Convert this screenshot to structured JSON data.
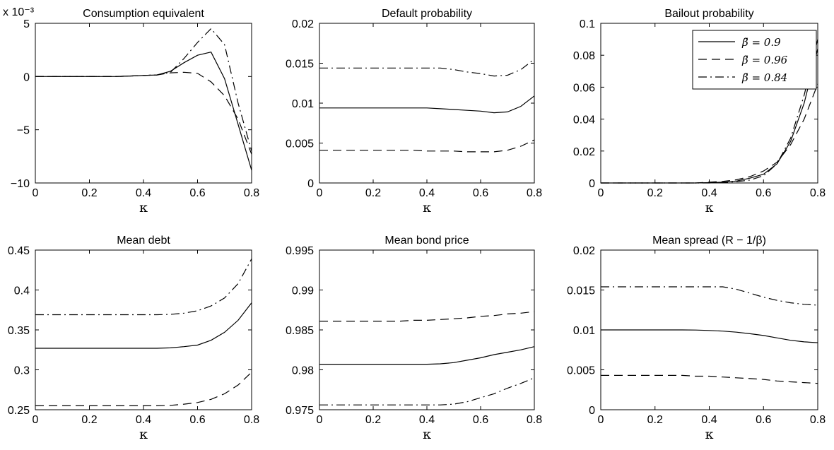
{
  "chart_data": [
    {
      "type": "line",
      "title": "Consumption equivalent",
      "xlabel": "κ",
      "multiplier_label": "x 10⁻³",
      "xlim": [
        0,
        0.8
      ],
      "ylim": [
        -10,
        5
      ],
      "xticks": [
        "0",
        "0.2",
        "0.4",
        "0.6",
        "0.8"
      ],
      "yticks": [
        "−10",
        "−5",
        "0",
        "5"
      ],
      "ytick_values": [
        -10,
        -5,
        0,
        5
      ],
      "grid": false,
      "x": [
        0,
        0.05,
        0.1,
        0.15,
        0.2,
        0.25,
        0.3,
        0.35,
        0.4,
        0.45,
        0.5,
        0.55,
        0.6,
        0.65,
        0.7,
        0.75,
        0.8
      ],
      "series": [
        {
          "name": "β̃ = 0.9",
          "dash": "solid",
          "values": [
            0,
            0,
            0,
            0,
            0,
            0,
            0,
            0.05,
            0.1,
            0.15,
            0.5,
            1.3,
            2.0,
            2.3,
            -0.2,
            -4.5,
            -8.8
          ]
        },
        {
          "name": "β̃ = 0.96",
          "dash": "dash",
          "values": [
            0,
            0,
            0,
            0,
            0,
            0,
            0,
            0.05,
            0.1,
            0.15,
            0.35,
            0.4,
            0.3,
            -0.5,
            -1.8,
            -4.0,
            -7.3
          ]
        },
        {
          "name": "β̃ = 0.84",
          "dash": "dashdot",
          "values": [
            0,
            0,
            0,
            0,
            0,
            0,
            0,
            0.05,
            0.1,
            0.15,
            0.4,
            1.7,
            3.2,
            4.5,
            3.0,
            -2.5,
            -7.0
          ]
        }
      ]
    },
    {
      "type": "line",
      "title": "Default probability",
      "xlabel": "κ",
      "xlim": [
        0,
        0.8
      ],
      "ylim": [
        0,
        0.02
      ],
      "xticks": [
        "0",
        "0.2",
        "0.4",
        "0.6",
        "0.8"
      ],
      "yticks": [
        "0",
        "0.005",
        "0.01",
        "0.015",
        "0.02"
      ],
      "ytick_values": [
        0,
        0.005,
        0.01,
        0.015,
        0.02
      ],
      "grid": false,
      "x": [
        0,
        0.05,
        0.1,
        0.15,
        0.2,
        0.25,
        0.3,
        0.35,
        0.4,
        0.45,
        0.5,
        0.55,
        0.6,
        0.65,
        0.7,
        0.75,
        0.8
      ],
      "series": [
        {
          "name": "β̃ = 0.9",
          "dash": "solid",
          "values": [
            0.0094,
            0.0094,
            0.0094,
            0.0094,
            0.0094,
            0.0094,
            0.0094,
            0.0094,
            0.0094,
            0.0093,
            0.0092,
            0.0091,
            0.009,
            0.0088,
            0.0089,
            0.0096,
            0.0109
          ]
        },
        {
          "name": "β̃ = 0.96",
          "dash": "dash",
          "values": [
            0.0041,
            0.0041,
            0.0041,
            0.0041,
            0.0041,
            0.0041,
            0.0041,
            0.0041,
            0.004,
            0.004,
            0.004,
            0.0039,
            0.0039,
            0.0039,
            0.0041,
            0.0046,
            0.0054
          ]
        },
        {
          "name": "β̃ = 0.84",
          "dash": "dashdot",
          "values": [
            0.0144,
            0.0144,
            0.0144,
            0.0144,
            0.0144,
            0.0144,
            0.0144,
            0.0144,
            0.0144,
            0.0144,
            0.0142,
            0.0139,
            0.0137,
            0.0134,
            0.0135,
            0.0142,
            0.0155
          ]
        }
      ]
    },
    {
      "type": "line",
      "title": "Bailout probability",
      "xlabel": "κ",
      "xlim": [
        0,
        0.8
      ],
      "ylim": [
        0,
        0.1
      ],
      "xticks": [
        "0",
        "0.2",
        "0.4",
        "0.6",
        "0.8"
      ],
      "yticks": [
        "0",
        "0.02",
        "0.04",
        "0.06",
        "0.08",
        "0.1"
      ],
      "ytick_values": [
        0,
        0.02,
        0.04,
        0.06,
        0.08,
        0.1
      ],
      "grid": false,
      "legend_position": "top-right",
      "x": [
        0,
        0.05,
        0.1,
        0.15,
        0.2,
        0.25,
        0.3,
        0.35,
        0.4,
        0.45,
        0.5,
        0.55,
        0.6,
        0.65,
        0.7,
        0.75,
        0.8
      ],
      "series": [
        {
          "name": "β̃ = 0.9",
          "dash": "solid",
          "values": [
            0,
            0,
            0,
            0,
            0,
            0,
            0,
            0,
            0.0002,
            0.0005,
            0.0012,
            0.003,
            0.0055,
            0.012,
            0.026,
            0.05,
            0.084
          ]
        },
        {
          "name": "β̃ = 0.96",
          "dash": "dash",
          "values": [
            0,
            0,
            0,
            0,
            0,
            0,
            0,
            0,
            0.0005,
            0.001,
            0.002,
            0.004,
            0.0075,
            0.013,
            0.024,
            0.04,
            0.062
          ]
        },
        {
          "name": "β̃ = 0.84",
          "dash": "dashdot",
          "values": [
            0,
            0,
            0,
            0,
            0,
            0,
            0,
            0,
            0,
            0.0002,
            0.0008,
            0.0018,
            0.0045,
            0.012,
            0.028,
            0.055,
            0.09
          ]
        }
      ]
    },
    {
      "type": "line",
      "title": "Mean debt",
      "xlabel": "κ",
      "xlim": [
        0,
        0.8
      ],
      "ylim": [
        0.25,
        0.45
      ],
      "xticks": [
        "0",
        "0.2",
        "0.4",
        "0.6",
        "0.8"
      ],
      "yticks": [
        "0.25",
        "0.3",
        "0.35",
        "0.4",
        "0.45"
      ],
      "ytick_values": [
        0.25,
        0.3,
        0.35,
        0.4,
        0.45
      ],
      "grid": false,
      "x": [
        0,
        0.05,
        0.1,
        0.15,
        0.2,
        0.25,
        0.3,
        0.35,
        0.4,
        0.45,
        0.5,
        0.55,
        0.6,
        0.65,
        0.7,
        0.75,
        0.8
      ],
      "series": [
        {
          "name": "β̃ = 0.9",
          "dash": "solid",
          "values": [
            0.327,
            0.327,
            0.327,
            0.327,
            0.327,
            0.327,
            0.327,
            0.327,
            0.327,
            0.327,
            0.3275,
            0.329,
            0.331,
            0.337,
            0.347,
            0.362,
            0.384
          ]
        },
        {
          "name": "β̃ = 0.96",
          "dash": "dash",
          "values": [
            0.255,
            0.255,
            0.255,
            0.255,
            0.255,
            0.255,
            0.255,
            0.255,
            0.255,
            0.255,
            0.2555,
            0.257,
            0.259,
            0.263,
            0.27,
            0.281,
            0.297
          ]
        },
        {
          "name": "β̃ = 0.84",
          "dash": "dashdot",
          "values": [
            0.369,
            0.369,
            0.369,
            0.369,
            0.369,
            0.369,
            0.369,
            0.369,
            0.369,
            0.369,
            0.3695,
            0.371,
            0.374,
            0.38,
            0.39,
            0.408,
            0.439
          ]
        }
      ]
    },
    {
      "type": "line",
      "title": "Mean bond price",
      "xlabel": "κ",
      "xlim": [
        0,
        0.8
      ],
      "ylim": [
        0.975,
        0.995
      ],
      "xticks": [
        "0",
        "0.2",
        "0.4",
        "0.6",
        "0.8"
      ],
      "yticks": [
        "0.975",
        "0.98",
        "0.985",
        "0.99",
        "0.995"
      ],
      "ytick_values": [
        0.975,
        0.98,
        0.985,
        0.99,
        0.995
      ],
      "grid": false,
      "x": [
        0,
        0.05,
        0.1,
        0.15,
        0.2,
        0.25,
        0.3,
        0.35,
        0.4,
        0.45,
        0.5,
        0.55,
        0.6,
        0.65,
        0.7,
        0.75,
        0.8
      ],
      "series": [
        {
          "name": "β̃ = 0.9",
          "dash": "solid",
          "values": [
            0.9807,
            0.9807,
            0.9807,
            0.9807,
            0.9807,
            0.9807,
            0.9807,
            0.9807,
            0.9807,
            0.98075,
            0.9809,
            0.9812,
            0.9815,
            0.9819,
            0.9822,
            0.9825,
            0.9829
          ]
        },
        {
          "name": "β̃ = 0.96",
          "dash": "dash",
          "values": [
            0.9861,
            0.9861,
            0.9861,
            0.9861,
            0.9861,
            0.9861,
            0.9861,
            0.9862,
            0.9862,
            0.9863,
            0.9864,
            0.9865,
            0.9867,
            0.9868,
            0.987,
            0.9871,
            0.9873
          ]
        },
        {
          "name": "β̃ = 0.84",
          "dash": "dashdot",
          "values": [
            0.9756,
            0.9756,
            0.9756,
            0.9756,
            0.9756,
            0.9756,
            0.9756,
            0.9756,
            0.9756,
            0.9756,
            0.9757,
            0.976,
            0.9765,
            0.977,
            0.9777,
            0.9783,
            0.979
          ]
        }
      ]
    },
    {
      "type": "line",
      "title": "Mean spread (R − 1/β)",
      "xlabel": "κ",
      "xlim": [
        0,
        0.8
      ],
      "ylim": [
        0,
        0.02
      ],
      "xticks": [
        "0",
        "0.2",
        "0.4",
        "0.6",
        "0.8"
      ],
      "yticks": [
        "0",
        "0.005",
        "0.01",
        "0.015",
        "0.02"
      ],
      "ytick_values": [
        0,
        0.005,
        0.01,
        0.015,
        0.02
      ],
      "grid": false,
      "x": [
        0,
        0.05,
        0.1,
        0.15,
        0.2,
        0.25,
        0.3,
        0.35,
        0.4,
        0.45,
        0.5,
        0.55,
        0.6,
        0.65,
        0.7,
        0.75,
        0.8
      ],
      "series": [
        {
          "name": "β̃ = 0.9",
          "dash": "solid",
          "values": [
            0.01,
            0.01,
            0.01,
            0.01,
            0.01,
            0.01,
            0.01,
            0.00998,
            0.00993,
            0.00985,
            0.00972,
            0.00952,
            0.0093,
            0.009,
            0.0087,
            0.0085,
            0.0084
          ]
        },
        {
          "name": "β̃ = 0.96",
          "dash": "dash",
          "values": [
            0.0043,
            0.0043,
            0.0043,
            0.0043,
            0.0043,
            0.0043,
            0.0043,
            0.0042,
            0.0042,
            0.0041,
            0.004,
            0.0039,
            0.0038,
            0.0036,
            0.0035,
            0.0034,
            0.0033
          ]
        },
        {
          "name": "β̃ = 0.84",
          "dash": "dashdot",
          "values": [
            0.0154,
            0.0154,
            0.0154,
            0.0154,
            0.0154,
            0.0154,
            0.0154,
            0.0154,
            0.0154,
            0.0154,
            0.0151,
            0.0146,
            0.0141,
            0.0137,
            0.0134,
            0.0132,
            0.0131
          ]
        }
      ]
    }
  ],
  "legend": {
    "position": "top-right",
    "entries": [
      {
        "label": "β̃ = 0.9",
        "dash": "solid"
      },
      {
        "label": "β̃ = 0.96",
        "dash": "dash"
      },
      {
        "label": "β̃ = 0.84",
        "dash": "dashdot"
      }
    ]
  }
}
